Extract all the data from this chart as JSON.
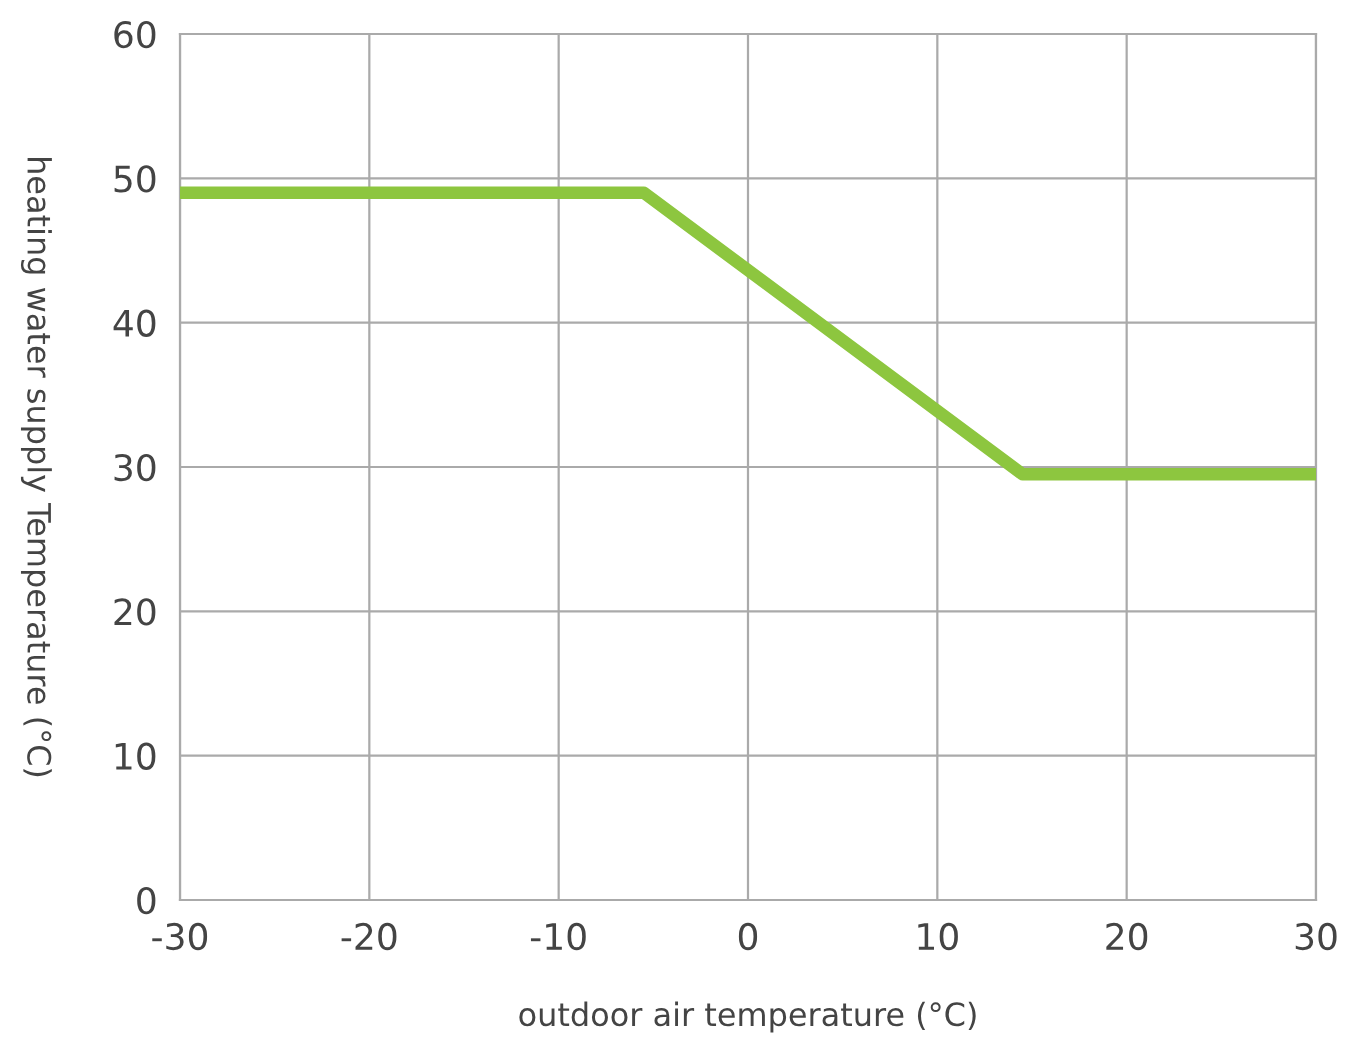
{
  "chart_data": {
    "type": "line",
    "xlabel": "outdoor air temperature (°C)",
    "ylabel": "heating water supply Temperature (°C)",
    "x": [
      -30,
      -5.5,
      14.5,
      30
    ],
    "series": [
      {
        "color": "#8dc63f",
        "values": [
          49,
          49,
          29.5,
          29.5
        ]
      }
    ],
    "xlim": [
      -30,
      30
    ],
    "xticks": [
      -30,
      -20,
      -10,
      0,
      10,
      20,
      30
    ],
    "ylim": [
      0,
      60
    ],
    "yticks": [
      0,
      10,
      20,
      30,
      40,
      50,
      60
    ],
    "grid": true,
    "marker": "none",
    "line_style": "solid"
  }
}
